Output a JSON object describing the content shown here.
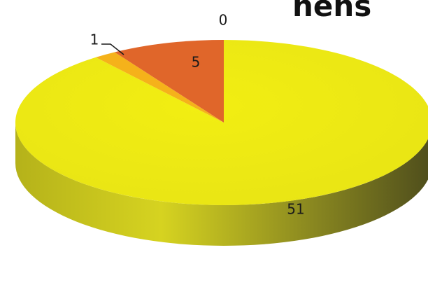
{
  "chart_data": {
    "type": "pie",
    "title_fragment": "nens",
    "slices": [
      {
        "value": 51,
        "label": "51",
        "color": "#ece816"
      },
      {
        "value": 1,
        "label": "1",
        "color": "#f5b21a"
      },
      {
        "value": 5,
        "label": "5",
        "color": "#e0662a"
      },
      {
        "value": 0,
        "label": "0",
        "color": "#c85a22"
      }
    ],
    "three_d": true
  }
}
